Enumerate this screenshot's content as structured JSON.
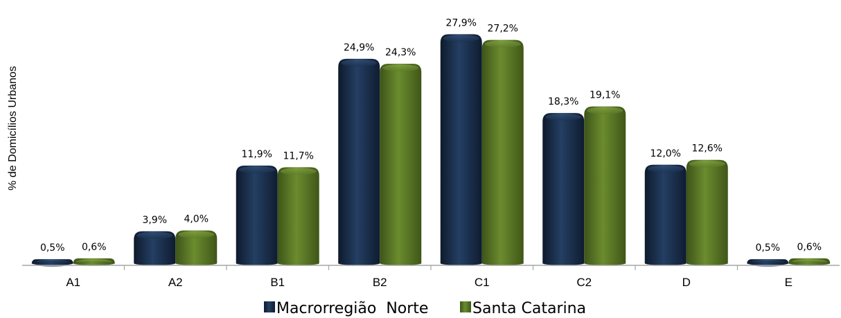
{
  "chart_data": {
    "type": "bar",
    "ylabel": "% de Domicílios Urbanos",
    "xlabel": "",
    "categories": [
      "A1",
      "A2",
      "B1",
      "B2",
      "C1",
      "C2",
      "D",
      "E"
    ],
    "series": [
      {
        "name": "Macrorregião  Norte",
        "color": "#1f3a5f",
        "values": [
          0.5,
          3.9,
          11.9,
          24.9,
          27.9,
          18.3,
          12.0,
          0.5
        ],
        "labels": [
          "0,5%",
          "3,9%",
          "11,9%",
          "24,9%",
          "27,9%",
          "18,3%",
          "12,0%",
          "0,5%"
        ]
      },
      {
        "name": "Santa Catarina",
        "color": "#5b7a26",
        "values": [
          0.6,
          4.0,
          11.7,
          24.3,
          27.2,
          19.1,
          12.6,
          0.6
        ],
        "labels": [
          "0,6%",
          "4,0%",
          "11,7%",
          "24,3%",
          "27,2%",
          "19,1%",
          "12,6%",
          "0,6%"
        ]
      }
    ],
    "ylim": [
      0,
      28
    ],
    "grid": false,
    "legend_position": "bottom-center"
  }
}
